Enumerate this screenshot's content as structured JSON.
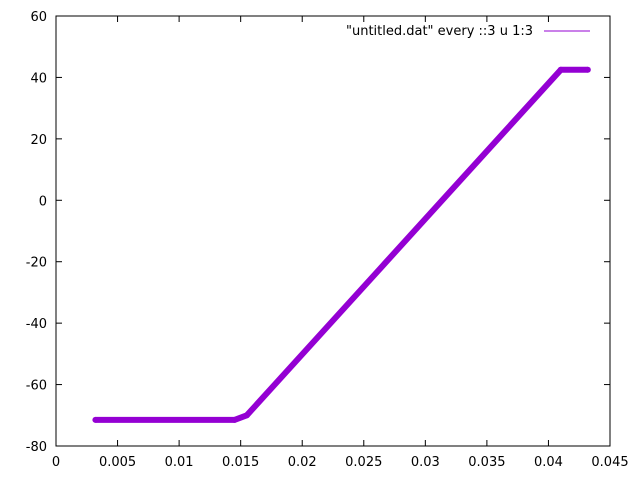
{
  "chart_data": {
    "type": "line",
    "title": "",
    "xlabel": "",
    "ylabel": "",
    "xlim": [
      0,
      0.045
    ],
    "ylim": [
      -80,
      60
    ],
    "xticks": [
      "0",
      "0.005",
      "0.01",
      "0.015",
      "0.02",
      "0.025",
      "0.03",
      "0.035",
      "0.04",
      "0.045"
    ],
    "yticks": [
      "-80",
      "-60",
      "-40",
      "-20",
      "0",
      "20",
      "40",
      "60"
    ],
    "grid": false,
    "legend_position": "top-right",
    "series": [
      {
        "name": "\"untitled.dat\" every ::3 u 1:3",
        "color": "#9400d3",
        "x": [
          0.0032,
          0.0145,
          0.0155,
          0.041,
          0.0432
        ],
        "y": [
          -71.5,
          -71.5,
          -70,
          42.5,
          42.5
        ]
      }
    ]
  }
}
